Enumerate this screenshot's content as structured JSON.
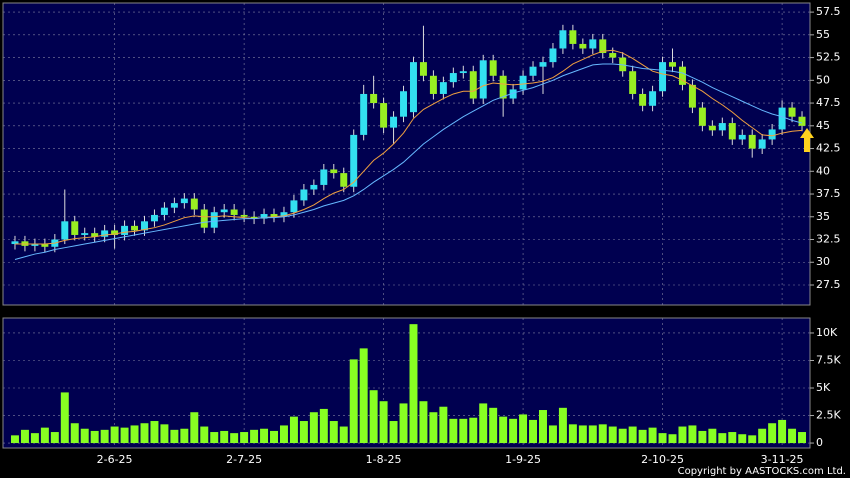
{
  "chart_data": {
    "type": "candlestick",
    "categories": [
      null,
      null,
      null,
      null,
      null,
      null,
      null,
      null,
      null,
      null,
      "2-6-25",
      null,
      null,
      null,
      null,
      null,
      null,
      null,
      null,
      null,
      null,
      null,
      null,
      "2-7-25",
      null,
      null,
      null,
      null,
      null,
      null,
      null,
      null,
      null,
      null,
      null,
      null,
      null,
      "1-8-25",
      null,
      null,
      null,
      null,
      null,
      null,
      null,
      null,
      null,
      null,
      null,
      null,
      null,
      "1-9-25",
      null,
      null,
      null,
      null,
      null,
      null,
      null,
      null,
      null,
      null,
      null,
      null,
      null,
      "2-10-25",
      null,
      null,
      null,
      null,
      null,
      null,
      null,
      null,
      null,
      null,
      null,
      "3-11-25",
      null,
      null
    ],
    "open": [
      32.0,
      32.3,
      31.8,
      32.0,
      31.7,
      32.5,
      34.5,
      33.0,
      33.2,
      32.8,
      33.5,
      33.0,
      34.0,
      33.5,
      34.5,
      35.2,
      36.0,
      36.5,
      37.0,
      35.8,
      33.8,
      35.5,
      35.8,
      35.2,
      35.0,
      34.8,
      35.3,
      35.0,
      35.5,
      36.8,
      38.0,
      38.5,
      40.2,
      39.8,
      38.3,
      44.0,
      48.5,
      47.5,
      44.8,
      46.0,
      46.5,
      52.0,
      50.5,
      48.5,
      49.8,
      50.8,
      51.0,
      48.0,
      52.2,
      50.5,
      48.0,
      49.0,
      50.5,
      51.5,
      52.0,
      53.5,
      55.5,
      54.0,
      53.5,
      54.5,
      53.0,
      52.5,
      51.0,
      48.5,
      47.2,
      48.8,
      52.0,
      51.5,
      49.5,
      47.0,
      45.0,
      44.5,
      45.3,
      43.5,
      44.0,
      42.5,
      43.5,
      44.6,
      47.0,
      46.0
    ],
    "high": [
      32.9,
      32.9,
      32.6,
      32.6,
      33.1,
      38.0,
      35.1,
      33.8,
      33.8,
      34.1,
      34.1,
      34.6,
      34.6,
      35.1,
      35.8,
      36.6,
      37.1,
      37.6,
      37.6,
      36.4,
      36.1,
      36.4,
      36.4,
      35.8,
      35.6,
      35.9,
      35.9,
      36.1,
      37.4,
      38.6,
      39.1,
      40.8,
      40.8,
      40.4,
      44.6,
      49.5,
      50.5,
      48.1,
      46.6,
      49.4,
      52.6,
      56.0,
      51.1,
      50.4,
      51.4,
      51.6,
      51.6,
      52.8,
      52.8,
      51.1,
      49.6,
      51.1,
      52.1,
      52.6,
      54.1,
      56.1,
      56.1,
      54.6,
      55.1,
      55.1,
      53.6,
      53.1,
      51.6,
      49.1,
      49.4,
      52.6,
      53.5,
      52.1,
      50.1,
      47.6,
      45.6,
      45.9,
      45.9,
      44.6,
      44.6,
      44.1,
      45.2,
      47.8,
      47.6,
      46.6
    ],
    "low": [
      31.4,
      31.2,
      31.2,
      31.1,
      31.1,
      32.0,
      32.4,
      32.4,
      32.2,
      32.2,
      31.5,
      32.4,
      32.9,
      32.9,
      33.9,
      34.6,
      35.4,
      35.9,
      35.2,
      33.2,
      33.2,
      34.9,
      34.6,
      34.4,
      34.2,
      34.2,
      34.4,
      34.4,
      34.9,
      36.2,
      37.4,
      37.9,
      39.2,
      37.7,
      37.7,
      43.4,
      46.9,
      44.2,
      43.0,
      45.4,
      45.9,
      49.9,
      47.9,
      47.9,
      49.2,
      50.2,
      47.4,
      47.4,
      49.9,
      46.0,
      47.4,
      48.4,
      49.9,
      48.5,
      51.4,
      52.9,
      53.4,
      52.9,
      52.9,
      52.4,
      51.9,
      50.4,
      47.9,
      46.6,
      46.6,
      48.2,
      50.9,
      48.9,
      46.4,
      44.4,
      43.9,
      43.9,
      42.9,
      42.9,
      41.5,
      41.9,
      42.9,
      44.0,
      45.4,
      44.4
    ],
    "close": [
      32.3,
      31.8,
      32.0,
      31.7,
      32.5,
      34.5,
      33.0,
      33.2,
      32.8,
      33.5,
      33.0,
      34.0,
      33.5,
      34.5,
      35.2,
      36.0,
      36.5,
      37.0,
      35.8,
      33.8,
      35.5,
      35.8,
      35.2,
      35.0,
      34.8,
      35.3,
      35.0,
      35.5,
      36.8,
      38.0,
      38.5,
      40.2,
      39.8,
      38.3,
      44.0,
      48.5,
      47.5,
      44.8,
      46.0,
      48.8,
      52.0,
      50.5,
      48.5,
      49.8,
      50.8,
      51.0,
      48.0,
      52.2,
      50.5,
      48.0,
      49.0,
      50.5,
      51.5,
      52.0,
      53.5,
      55.5,
      54.0,
      53.5,
      54.5,
      53.0,
      52.5,
      51.0,
      48.5,
      47.2,
      48.8,
      52.0,
      51.5,
      49.5,
      47.0,
      45.0,
      44.5,
      45.3,
      43.5,
      44.0,
      42.5,
      43.5,
      44.6,
      47.0,
      46.0,
      45.0
    ],
    "up_color": "#33e0f0",
    "down_color": "#99ee22",
    "series": [
      {
        "color": "#f0a040",
        "values": [
          32.0,
          32.0,
          32.0,
          32.0,
          32.1,
          32.4,
          32.6,
          32.7,
          32.8,
          33.0,
          33.1,
          33.3,
          33.4,
          33.6,
          33.8,
          34.1,
          34.5,
          34.9,
          35.1,
          35.0,
          35.0,
          35.1,
          35.0,
          34.9,
          34.8,
          34.9,
          35.0,
          35.1,
          35.4,
          35.8,
          36.3,
          37.0,
          37.6,
          38.0,
          38.8,
          40.0,
          41.2,
          42.0,
          43.0,
          44.2,
          45.8,
          46.8,
          47.4,
          48.0,
          48.5,
          48.8,
          48.8,
          49.4,
          49.7,
          49.6,
          49.5,
          49.6,
          49.7,
          49.9,
          50.3,
          51.0,
          51.8,
          52.3,
          52.8,
          53.2,
          53.3,
          53.0,
          52.4,
          51.7,
          51.0,
          50.7,
          50.5,
          50.0,
          49.4,
          48.8,
          48.0,
          47.3,
          46.5,
          45.6,
          44.8,
          44.0,
          43.9,
          44.2,
          44.4,
          44.5
        ]
      },
      {
        "color": "#66b8ff",
        "values": [
          30.3,
          30.6,
          30.9,
          31.1,
          31.4,
          31.6,
          31.8,
          32.0,
          32.2,
          32.4,
          32.6,
          32.8,
          33.0,
          33.2,
          33.4,
          33.6,
          33.8,
          34.0,
          34.2,
          34.4,
          34.5,
          34.6,
          34.7,
          34.8,
          34.8,
          34.9,
          34.9,
          35.0,
          35.2,
          35.5,
          35.8,
          36.2,
          36.5,
          36.8,
          37.3,
          38.0,
          38.8,
          39.5,
          40.2,
          41.0,
          42.0,
          43.0,
          43.8,
          44.6,
          45.3,
          46.0,
          46.6,
          47.2,
          47.8,
          48.2,
          48.6,
          48.9,
          49.2,
          49.6,
          50.0,
          50.5,
          50.9,
          51.3,
          51.7,
          51.8,
          51.8,
          51.7,
          51.5,
          51.3,
          51.2,
          51.1,
          51.0,
          50.8,
          50.3,
          49.8,
          49.2,
          48.7,
          48.2,
          47.7,
          47.2,
          46.7,
          46.3,
          46.0,
          45.6,
          45.3
        ]
      }
    ],
    "ylim": [
      25.3,
      58.5
    ],
    "yticks": [
      27.5,
      30,
      32.5,
      35,
      37.5,
      40,
      42.5,
      45,
      47.5,
      50,
      52.5,
      55,
      57.5
    ],
    "grid": true,
    "volume": {
      "color": "#88ff22",
      "values": [
        700,
        1200,
        900,
        1400,
        1000,
        4600,
        1800,
        1300,
        1100,
        1200,
        1500,
        1400,
        1600,
        1800,
        2000,
        1700,
        1200,
        1300,
        2800,
        1500,
        1000,
        1100,
        900,
        1000,
        1200,
        1300,
        1100,
        1600,
        2400,
        2000,
        2800,
        3100,
        2000,
        1500,
        7600,
        8600,
        4800,
        3800,
        2000,
        3600,
        10800,
        3800,
        2800,
        3300,
        2200,
        2200,
        2300,
        3600,
        3200,
        2400,
        2200,
        2600,
        2100,
        3000,
        1600,
        3200,
        1700,
        1600,
        1600,
        1700,
        1500,
        1300,
        1500,
        1200,
        1400,
        900,
        800,
        1500,
        1600,
        1100,
        1300,
        900,
        1000,
        800,
        700,
        1300,
        1800,
        2100,
        1300,
        1000
      ],
      "ylim": [
        -450,
        11360
      ],
      "yticks": [
        0,
        {
          "value": 2500,
          "label": "2.5K"
        },
        {
          "value": 5000,
          "label": "5K"
        },
        {
          "value": 7500,
          "label": "7.5K"
        },
        {
          "value": 10000,
          "label": "10K"
        }
      ]
    },
    "footer": "Copyright by AASTOCKS.com Ltd."
  }
}
